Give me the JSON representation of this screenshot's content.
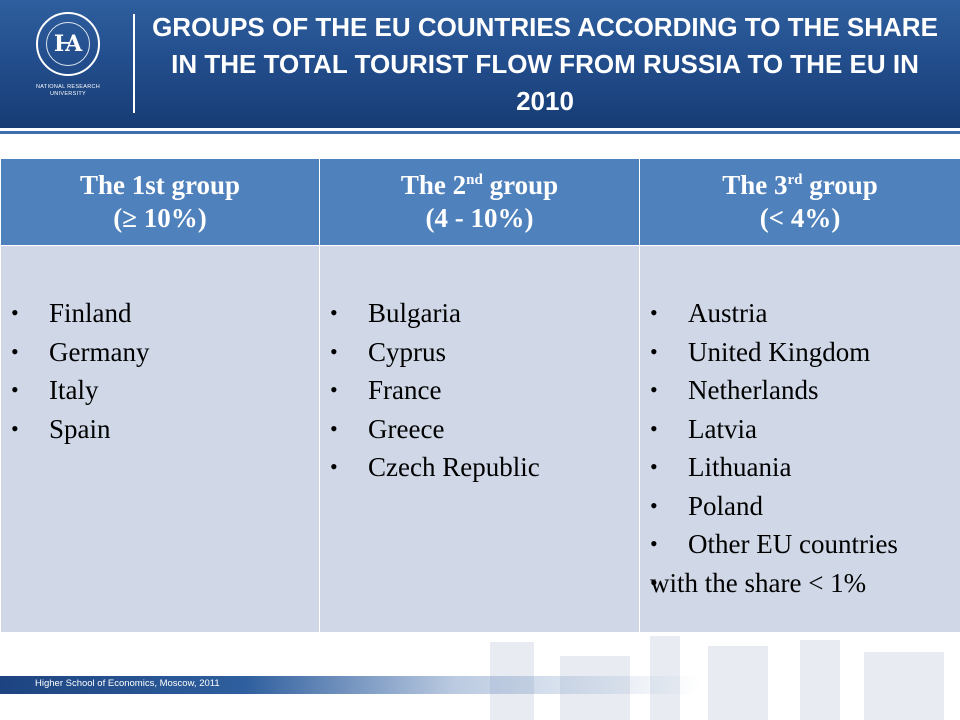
{
  "header": {
    "title": "GROUPS OF THE EU COUNTRIES ACCORDING TO THE SHARE IN THE TOTAL TOURIST FLOW FROM RUSSIA TO THE EU IN 2010",
    "logo_text": "NATIONAL RESEARCH UNIVERSITY",
    "logo_ring_text": "HIGHER SCHOOL OF ECONOMICS"
  },
  "table": {
    "columns": [
      {
        "title_main": "The 1st group",
        "title_num": "",
        "title_sup": "",
        "title_rest": "",
        "range": "(≥ 10%)"
      },
      {
        "title_main": "The 2",
        "title_num": "",
        "title_sup": "nd",
        "title_rest": " group",
        "range": "(4 - 10%)"
      },
      {
        "title_main": "The 3",
        "title_num": "",
        "title_sup": "rd",
        "title_rest": " group",
        "range": "(< 4%)"
      }
    ],
    "group1": [
      "Finland",
      "Germany",
      "Italy",
      "Spain"
    ],
    "group2": [
      "Bulgaria",
      "Cyprus",
      "France",
      "Greece",
      "Czech Republic"
    ],
    "group3": [
      "Austria",
      "United Kingdom",
      "Netherlands",
      "Latvia",
      "Lithuania",
      "Poland",
      "Other EU countries"
    ],
    "group3_note": "with the share < 1%"
  },
  "footer": {
    "text": "Higher School of Economics, Moscow, 2011"
  },
  "colors": {
    "header_blue": "#234e8d",
    "table_header": "#4f81bd",
    "table_body": "#d0d8e8"
  }
}
